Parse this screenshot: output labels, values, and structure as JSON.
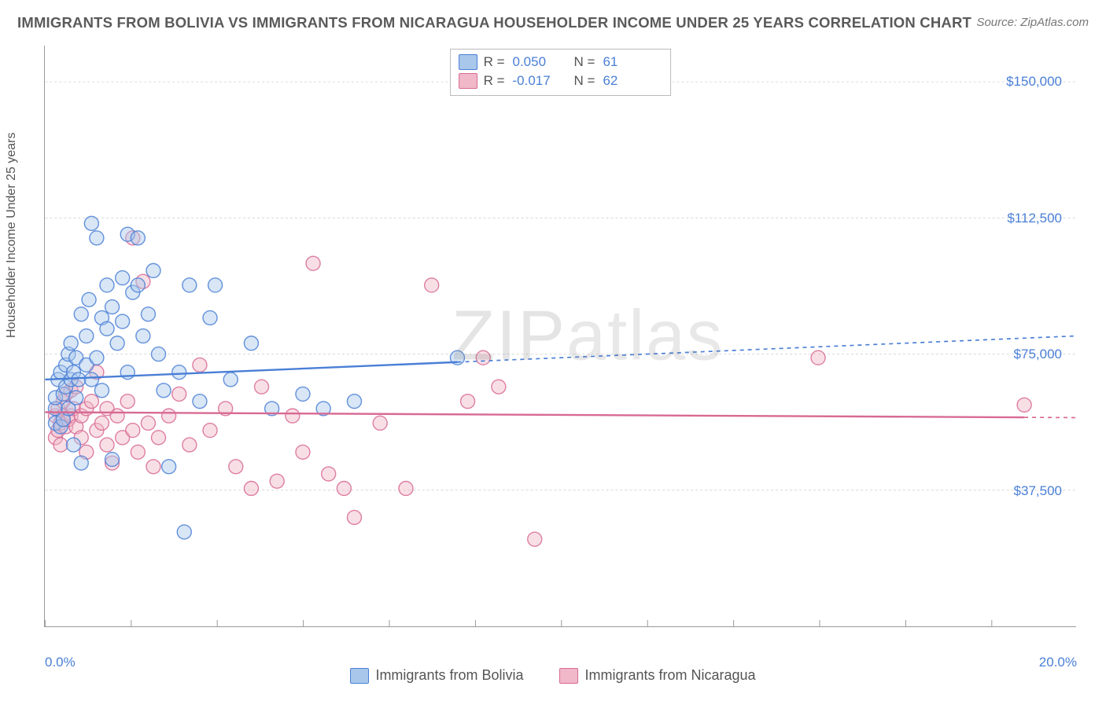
{
  "title": "IMMIGRANTS FROM BOLIVIA VS IMMIGRANTS FROM NICARAGUA HOUSEHOLDER INCOME UNDER 25 YEARS CORRELATION CHART",
  "source_label": "Source: ZipAtlas.com",
  "y_axis_label": "Householder Income Under 25 years",
  "watermark": {
    "bold": "ZIP",
    "light": "atlas"
  },
  "chart": {
    "type": "scatter",
    "background_color": "#ffffff",
    "grid_color": "#d7d7d7",
    "axis_color": "#999999",
    "xlim": [
      0,
      20
    ],
    "ylim": [
      0,
      160000
    ],
    "x_ticks": [
      0,
      20
    ],
    "x_tick_labels": [
      "0.0%",
      "20.0%"
    ],
    "x_minor_tick_step": 1.67,
    "y_ticks": [
      37500,
      75000,
      112500,
      150000
    ],
    "y_tick_labels": [
      "$37,500",
      "$75,000",
      "$112,500",
      "$150,000"
    ],
    "y_tick_color": "#4a7fd6",
    "marker_radius": 9,
    "marker_opacity": 0.45,
    "marker_stroke_width": 1.4,
    "line_width": 2.4,
    "dash_pattern": "5,5",
    "series": [
      {
        "name": "Immigrants from Bolivia",
        "color_fill": "#a8c7ea",
        "color_stroke": "#4a7fd6",
        "R": "0.050",
        "N": "61",
        "data": [
          [
            0.2,
            56000
          ],
          [
            0.2,
            60000
          ],
          [
            0.2,
            63000
          ],
          [
            0.25,
            68000
          ],
          [
            0.3,
            55000
          ],
          [
            0.3,
            70000
          ],
          [
            0.35,
            57000
          ],
          [
            0.35,
            64000
          ],
          [
            0.4,
            66000
          ],
          [
            0.4,
            72000
          ],
          [
            0.45,
            60000
          ],
          [
            0.45,
            75000
          ],
          [
            0.5,
            68000
          ],
          [
            0.5,
            78000
          ],
          [
            0.55,
            70000
          ],
          [
            0.55,
            50000
          ],
          [
            0.6,
            63000
          ],
          [
            0.6,
            74000
          ],
          [
            0.65,
            68000
          ],
          [
            0.7,
            86000
          ],
          [
            0.7,
            45000
          ],
          [
            0.8,
            72000
          ],
          [
            0.8,
            80000
          ],
          [
            0.85,
            90000
          ],
          [
            0.9,
            68000
          ],
          [
            0.9,
            111000
          ],
          [
            1.0,
            74000
          ],
          [
            1.0,
            107000
          ],
          [
            1.1,
            85000
          ],
          [
            1.1,
            65000
          ],
          [
            1.2,
            82000
          ],
          [
            1.2,
            94000
          ],
          [
            1.3,
            88000
          ],
          [
            1.3,
            46000
          ],
          [
            1.4,
            78000
          ],
          [
            1.5,
            84000
          ],
          [
            1.5,
            96000
          ],
          [
            1.6,
            108000
          ],
          [
            1.6,
            70000
          ],
          [
            1.7,
            92000
          ],
          [
            1.8,
            94000
          ],
          [
            1.8,
            107000
          ],
          [
            1.9,
            80000
          ],
          [
            2.0,
            86000
          ],
          [
            2.1,
            98000
          ],
          [
            2.2,
            75000
          ],
          [
            2.3,
            65000
          ],
          [
            2.4,
            44000
          ],
          [
            2.6,
            70000
          ],
          [
            2.8,
            94000
          ],
          [
            2.7,
            26000
          ],
          [
            3.0,
            62000
          ],
          [
            3.2,
            85000
          ],
          [
            3.3,
            94000
          ],
          [
            3.6,
            68000
          ],
          [
            4.0,
            78000
          ],
          [
            4.4,
            60000
          ],
          [
            5.0,
            64000
          ],
          [
            5.4,
            60000
          ],
          [
            6.0,
            62000
          ],
          [
            8.0,
            74000
          ]
        ],
        "trend": {
          "y_at_x0": 68000,
          "y_at_xmax": 80000,
          "solid_until_x": 8.0
        }
      },
      {
        "name": "Immigrants from Nicaragua",
        "color_fill": "#f0b8c8",
        "color_stroke": "#d86a93",
        "R": "-0.017",
        "N": "62",
        "data": [
          [
            0.2,
            52000
          ],
          [
            0.2,
            58000
          ],
          [
            0.25,
            54000
          ],
          [
            0.25,
            60000
          ],
          [
            0.3,
            50000
          ],
          [
            0.3,
            56000
          ],
          [
            0.35,
            58000
          ],
          [
            0.35,
            62000
          ],
          [
            0.4,
            55000
          ],
          [
            0.4,
            64000
          ],
          [
            0.45,
            57000
          ],
          [
            0.5,
            58000
          ],
          [
            0.5,
            65000
          ],
          [
            0.55,
            60000
          ],
          [
            0.6,
            55000
          ],
          [
            0.6,
            66000
          ],
          [
            0.7,
            58000
          ],
          [
            0.7,
            52000
          ],
          [
            0.8,
            60000
          ],
          [
            0.8,
            48000
          ],
          [
            0.9,
            62000
          ],
          [
            1.0,
            54000
          ],
          [
            1.0,
            70000
          ],
          [
            1.1,
            56000
          ],
          [
            1.2,
            60000
          ],
          [
            1.2,
            50000
          ],
          [
            1.3,
            45000
          ],
          [
            1.4,
            58000
          ],
          [
            1.5,
            52000
          ],
          [
            1.6,
            62000
          ],
          [
            1.7,
            54000
          ],
          [
            1.7,
            107000
          ],
          [
            1.8,
            48000
          ],
          [
            1.9,
            95000
          ],
          [
            2.0,
            56000
          ],
          [
            2.1,
            44000
          ],
          [
            2.2,
            52000
          ],
          [
            2.4,
            58000
          ],
          [
            2.6,
            64000
          ],
          [
            2.8,
            50000
          ],
          [
            3.0,
            72000
          ],
          [
            3.2,
            54000
          ],
          [
            3.5,
            60000
          ],
          [
            3.7,
            44000
          ],
          [
            4.0,
            38000
          ],
          [
            4.2,
            66000
          ],
          [
            4.5,
            40000
          ],
          [
            4.8,
            58000
          ],
          [
            5.0,
            48000
          ],
          [
            5.2,
            100000
          ],
          [
            5.5,
            42000
          ],
          [
            5.8,
            38000
          ],
          [
            6.0,
            30000
          ],
          [
            6.5,
            56000
          ],
          [
            7.0,
            38000
          ],
          [
            7.5,
            94000
          ],
          [
            8.2,
            62000
          ],
          [
            8.5,
            74000
          ],
          [
            8.8,
            66000
          ],
          [
            9.5,
            24000
          ],
          [
            15.0,
            74000
          ],
          [
            19.0,
            61000
          ]
        ],
        "trend": {
          "y_at_x0": 59000,
          "y_at_xmax": 57500,
          "solid_until_x": 19.0
        }
      }
    ]
  },
  "stats_box_labels": {
    "R": "R =",
    "N": "N ="
  },
  "legend_position": "bottom"
}
